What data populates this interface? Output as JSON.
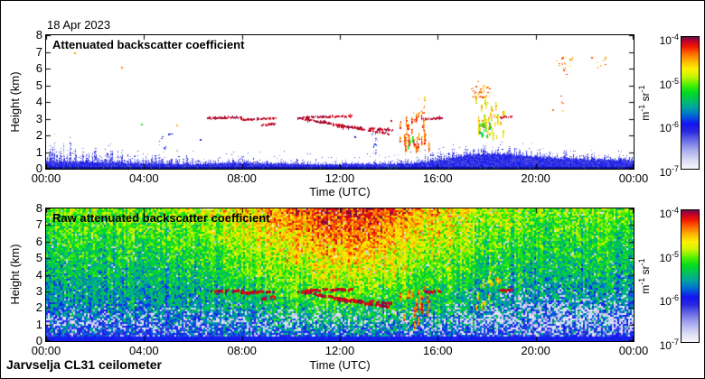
{
  "figure": {
    "date_label": "18 Apr 2023",
    "footer_label": "Jarvselja CL31 ceilometer"
  },
  "colors": {
    "axis": "#000000",
    "plot_background": "#ffffff",
    "ground_line": "#1010a0",
    "ground_speck": "#008040"
  },
  "colormap_stops": [
    [
      0.0,
      "#f6f6fc"
    ],
    [
      0.06,
      "#dcdcf4"
    ],
    [
      0.14,
      "#a8aaee"
    ],
    [
      0.22,
      "#6466e6"
    ],
    [
      0.28,
      "#2a2ae0"
    ],
    [
      0.34,
      "#1414f0"
    ],
    [
      0.4,
      "#0064d8"
    ],
    [
      0.46,
      "#00a0a8"
    ],
    [
      0.52,
      "#00c060"
    ],
    [
      0.58,
      "#00dc20"
    ],
    [
      0.64,
      "#50f000"
    ],
    [
      0.7,
      "#c8f400"
    ],
    [
      0.76,
      "#fff200"
    ],
    [
      0.82,
      "#ffb400"
    ],
    [
      0.88,
      "#ff6400"
    ],
    [
      0.93,
      "#f01800"
    ],
    [
      0.97,
      "#c80028"
    ],
    [
      1.0,
      "#6e0e48"
    ]
  ],
  "cloud_features": {
    "streaks": [
      {
        "t": [
          6.6,
          8.0
        ],
        "h": [
          3.0,
          3.05
        ]
      },
      {
        "t": [
          7.95,
          9.4
        ],
        "h": [
          2.92,
          3.0
        ]
      },
      {
        "t": [
          8.8,
          9.35
        ],
        "h": [
          2.58,
          2.66
        ]
      },
      {
        "t": [
          10.5,
          12.5
        ],
        "h": [
          3.05,
          3.12
        ]
      },
      {
        "t": [
          10.3,
          14.0
        ],
        "h": [
          3.0,
          2.05
        ]
      },
      {
        "t": [
          11.9,
          12.9
        ],
        "h": [
          2.5,
          2.42
        ]
      },
      {
        "t": [
          13.2,
          14.15
        ],
        "h": [
          2.38,
          2.28
        ]
      },
      {
        "t": [
          15.5,
          16.2
        ],
        "h": [
          2.95,
          3.02
        ]
      },
      {
        "t": [
          18.55,
          19.05
        ],
        "h": [
          3.05,
          3.1
        ]
      }
    ],
    "blobs": [
      {
        "t": [
          14.45,
          15.65
        ],
        "h": [
          1.15,
          3.35
        ],
        "v": [
          0.8,
          0.97
        ],
        "density": 0.95,
        "run": 12
      },
      {
        "t": [
          14.78,
          14.98
        ],
        "h": [
          1.25,
          2.0
        ],
        "v": [
          0.52,
          0.64
        ],
        "density": 0.8,
        "run": 8
      },
      {
        "t": [
          17.55,
          18.7
        ],
        "h": [
          1.95,
          4.35
        ],
        "v": [
          0.66,
          0.87
        ],
        "density": 0.85,
        "run": 9
      },
      {
        "t": [
          17.7,
          18.15
        ],
        "h": [
          1.95,
          2.75
        ],
        "v": [
          0.5,
          0.63
        ],
        "density": 0.55,
        "run": 6
      }
    ],
    "dots": [
      {
        "t": [
          16.9,
          18.75
        ],
        "h": [
          4.3,
          7.0
        ],
        "n": 50,
        "v": [
          0.78,
          0.95
        ]
      },
      {
        "t": [
          20.7,
          21.5
        ],
        "h": [
          3.4,
          6.7
        ],
        "n": 28,
        "v": [
          0.78,
          0.92
        ]
      },
      {
        "t": [
          22.3,
          22.85
        ],
        "h": [
          6.05,
          6.7
        ],
        "n": 10,
        "v": [
          0.8,
          0.9
        ]
      },
      {
        "t": [
          15.0,
          15.45
        ],
        "h": [
          3.4,
          4.45
        ],
        "n": 12,
        "v": [
          0.78,
          0.9
        ]
      },
      {
        "t": [
          0.2,
          13.8
        ],
        "h": [
          0.9,
          2.1
        ],
        "n": 26,
        "v": [
          0.2,
          0.38
        ]
      }
    ],
    "points": [
      [
        3.1,
        6.1,
        0.85
      ],
      [
        1.15,
        6.95,
        0.84
      ],
      [
        3.9,
        2.65,
        0.6
      ],
      [
        5.35,
        2.6,
        0.82
      ],
      [
        14.1,
        2.9,
        0.97
      ],
      [
        6.3,
        1.75,
        0.3
      ],
      [
        12.6,
        1.9,
        0.3
      ]
    ]
  },
  "chart_data": [
    {
      "type": "heatmap",
      "title": "Attenuated backscatter coefficient",
      "xlabel": "Time (UTC)",
      "ylabel": "Height (km)",
      "x_ticks": [
        "00:00",
        "04:00",
        "08:00",
        "12:00",
        "16:00",
        "20:00",
        "00:00"
      ],
      "y_ticks": [
        "0",
        "1",
        "2",
        "3",
        "4",
        "5",
        "6",
        "7",
        "8"
      ],
      "xlim_hours": [
        0,
        24
      ],
      "ylim_km": [
        0,
        8
      ],
      "background": "white",
      "colorbar": {
        "scale": "log",
        "tick_labels": [
          "10^-4",
          "10^-5",
          "10^-6",
          "10^-7"
        ],
        "unit": "m^-1 sr^-1"
      },
      "boundary_layer": {
        "t": [
          0,
          1,
          2,
          3,
          4,
          5,
          6,
          7,
          8,
          9,
          10,
          11,
          12,
          13,
          14,
          15,
          16,
          17,
          18,
          19,
          20,
          21,
          22,
          23,
          24
        ],
        "base_km": [
          0.45,
          0.42,
          0.4,
          0.36,
          0.33,
          0.3,
          0.28,
          0.33,
          0.36,
          0.33,
          0.3,
          0.28,
          0.28,
          0.3,
          0.3,
          0.33,
          0.5,
          0.8,
          0.92,
          0.88,
          0.72,
          0.62,
          0.58,
          0.55,
          0.52
        ],
        "spike_km": [
          1.65,
          1.55,
          1.45,
          1.2,
          1.05,
          0.95,
          0.85,
          0.8,
          0.75,
          0.65,
          0.6,
          0.55,
          0.55,
          0.55,
          0.6,
          0.85,
          1.1,
          1.4,
          1.5,
          1.4,
          1.3,
          1.15,
          1.05,
          0.95,
          0.9
        ]
      }
    },
    {
      "type": "heatmap",
      "title": "Raw attenuated backscatter coefficient",
      "xlabel": "Time (UTC)",
      "ylabel": "Height (km)",
      "x_ticks": [
        "00:00",
        "04:00",
        "08:00",
        "12:00",
        "16:00",
        "20:00",
        "00:00"
      ],
      "y_ticks": [
        "0",
        "1",
        "2",
        "3",
        "4",
        "5",
        "6",
        "7",
        "8"
      ],
      "xlim_hours": [
        0,
        24
      ],
      "ylim_km": [
        0,
        8
      ],
      "background": "noise",
      "colorbar": {
        "scale": "log",
        "tick_labels": [
          "10^-4",
          "10^-5",
          "10^-6",
          "10^-7"
        ],
        "unit": "m^-1 sr^-1"
      },
      "noise": {
        "sun_peak_hour": 12.3,
        "sun_sigma_h": 3.2,
        "base": 0.3,
        "height_gain": 0.34,
        "height_exp": 0.75,
        "sun_gain": 0.3,
        "sun_height_exp": 0.55,
        "pixel_noise": 0.17,
        "column_noise": 0.035,
        "speckle": {
          "band_center_km": 1.2,
          "band_sigma_km": 0.55,
          "band_peak": 0.3,
          "evening_start_h": 15.5,
          "evening_extra": 0.25,
          "evening_center_km": 1.6,
          "evening_sigma_km": 1.0,
          "floor": 0.02
        },
        "ground_km": 0.3
      }
    }
  ]
}
